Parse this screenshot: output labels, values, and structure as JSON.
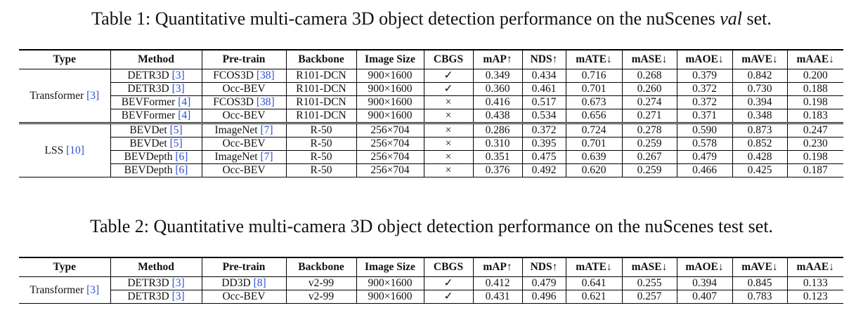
{
  "tables": [
    {
      "caption": {
        "before": "Table 1: Quantitative multi-camera 3D object detection performance on the nuScenes ",
        "italic": "val",
        "after": " set."
      },
      "header": [
        "Type",
        "Method",
        "Pre-train",
        "Backbone",
        "Image Size",
        "CBGS",
        "mAP↑",
        "NDS↑",
        "mATE↓",
        "mASE↓",
        "mAOE↓",
        "mAVE↓",
        "mAAE↓"
      ],
      "groups": [
        {
          "type": {
            "text": "Transformer",
            "cite": "[3]"
          },
          "rows": [
            [
              {
                "text": "DETR3D",
                "cite": "[3]"
              },
              {
                "text": "FCOS3D",
                "cite": "[38]"
              },
              "R101-DCN",
              "900×1600",
              "✓",
              "0.349",
              "0.434",
              "0.716",
              "0.268",
              "0.379",
              "0.842",
              "0.200"
            ],
            [
              {
                "text": "DETR3D",
                "cite": "[3]"
              },
              "Occ-BEV",
              "R101-DCN",
              "900×1600",
              "✓",
              "0.360",
              "0.461",
              "0.701",
              "0.260",
              "0.372",
              "0.730",
              "0.188"
            ],
            [
              {
                "text": "BEVFormer",
                "cite": "[4]"
              },
              {
                "text": "FCOS3D",
                "cite": "[38]"
              },
              "R101-DCN",
              "900×1600",
              "×",
              "0.416",
              "0.517",
              "0.673",
              "0.274",
              "0.372",
              "0.394",
              "0.198"
            ],
            [
              {
                "text": "BEVFormer",
                "cite": "[4]"
              },
              "Occ-BEV",
              "R101-DCN",
              "900×1600",
              "×",
              "0.438",
              "0.534",
              "0.656",
              "0.271",
              "0.371",
              "0.348",
              "0.183"
            ]
          ]
        },
        {
          "type": {
            "text": "LSS",
            "cite": "[10]"
          },
          "rows": [
            [
              {
                "text": "BEVDet",
                "cite": "[5]"
              },
              {
                "text": "ImageNet",
                "cite": "[7]"
              },
              "R-50",
              "256×704",
              "×",
              "0.286",
              "0.372",
              "0.724",
              "0.278",
              "0.590",
              "0.873",
              "0.247"
            ],
            [
              {
                "text": "BEVDet",
                "cite": "[5]"
              },
              "Occ-BEV",
              "R-50",
              "256×704",
              "×",
              "0.310",
              "0.395",
              "0.701",
              "0.259",
              "0.578",
              "0.852",
              "0.230"
            ],
            [
              {
                "text": "BEVDepth",
                "cite": "[6]"
              },
              {
                "text": "ImageNet",
                "cite": "[7]"
              },
              "R-50",
              "256×704",
              "×",
              "0.351",
              "0.475",
              "0.639",
              "0.267",
              "0.479",
              "0.428",
              "0.198"
            ],
            [
              {
                "text": "BEVDepth",
                "cite": "[6]"
              },
              "Occ-BEV",
              "R-50",
              "256×704",
              "×",
              "0.376",
              "0.492",
              "0.620",
              "0.259",
              "0.466",
              "0.425",
              "0.187"
            ]
          ]
        }
      ]
    },
    {
      "caption": {
        "before": "Table 2: Quantitative multi-camera 3D object detection performance on the nuScenes test set."
      },
      "header": [
        "Type",
        "Method",
        "Pre-train",
        "Backbone",
        "Image Size",
        "CBGS",
        "mAP↑",
        "NDS↑",
        "mATE↓",
        "mASE↓",
        "mAOE↓",
        "mAVE↓",
        "mAAE↓"
      ],
      "groups": [
        {
          "type": {
            "text": "Transformer",
            "cite": "[3]"
          },
          "rows": [
            [
              {
                "text": "DETR3D",
                "cite": "[3]"
              },
              {
                "text": "DD3D",
                "cite": "[8]"
              },
              "v2-99",
              "900×1600",
              "✓",
              "0.412",
              "0.479",
              "0.641",
              "0.255",
              "0.394",
              "0.845",
              "0.133"
            ],
            [
              {
                "text": "DETR3D",
                "cite": "[3]"
              },
              "Occ-BEV",
              "v2-99",
              "900×1600",
              "✓",
              "0.431",
              "0.496",
              "0.621",
              "0.257",
              "0.407",
              "0.783",
              "0.123"
            ]
          ]
        }
      ]
    }
  ]
}
